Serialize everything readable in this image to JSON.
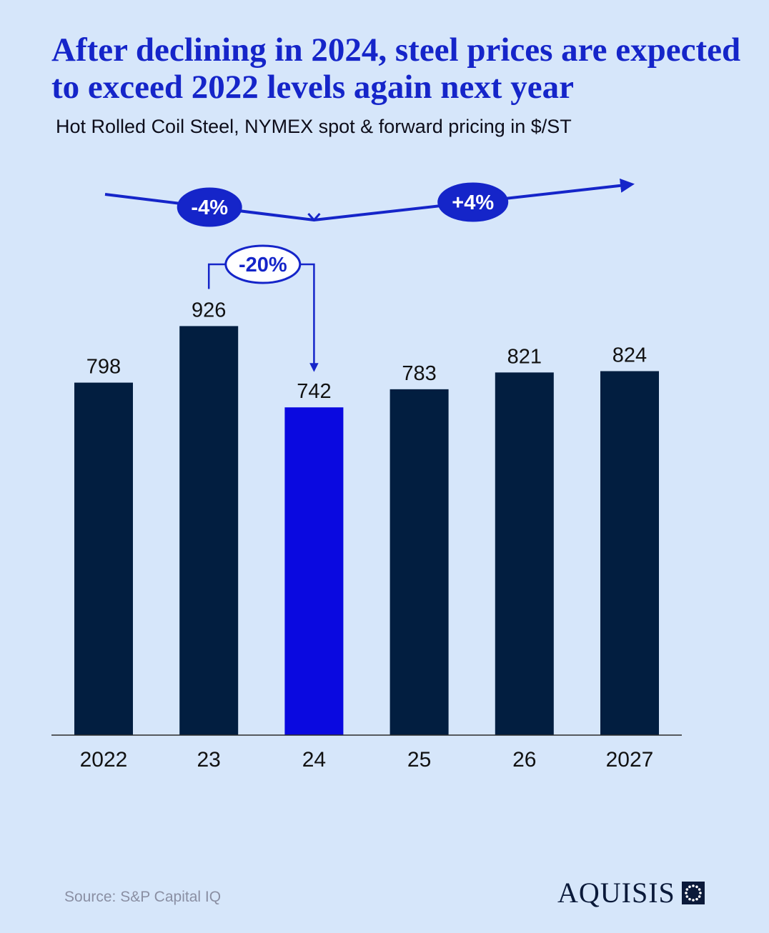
{
  "title": "After declining in 2024, steel prices are expected to exceed 2022 levels again next year",
  "subtitle_bold": "Hot Rolled Coil Steel",
  "subtitle_rest": ", NYMEX spot & forward pricing in $/ST",
  "source": "Source: S&P Capital IQ",
  "brand": "AQUISIS",
  "colors": {
    "bar": "#021e40",
    "highlight": "#0a09e0",
    "accent": "#1525c9"
  },
  "chart_data": {
    "type": "bar",
    "categories": [
      "2022",
      "23",
      "24",
      "25",
      "26",
      "2027"
    ],
    "values": [
      798,
      926,
      742,
      783,
      821,
      824
    ],
    "highlight_index": 2,
    "ylim": [
      0,
      1000
    ],
    "annotations": [
      {
        "label": "-4%",
        "from": "2022",
        "to": "24",
        "style": "filled"
      },
      {
        "label": "+4%",
        "from": "24",
        "to": "2027",
        "style": "filled"
      },
      {
        "label": "-20%",
        "from": "23",
        "to": "24",
        "style": "outlined"
      }
    ]
  }
}
